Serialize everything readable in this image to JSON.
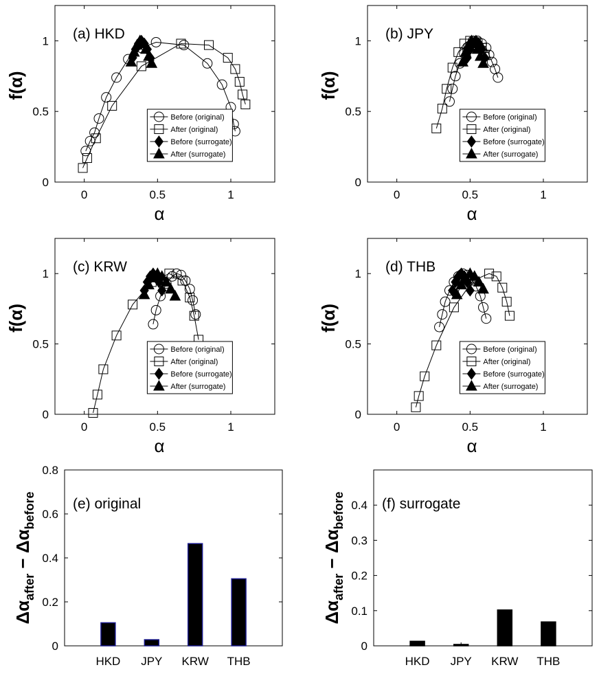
{
  "colors": {
    "axis": "#000000",
    "bar_fill": "#000000",
    "bar_edge_original": "#1a1a8c",
    "background": "#ffffff"
  },
  "chart_data": [
    {
      "id": "a",
      "type": "line",
      "annotation": "(a) HKD",
      "xlabel": "α",
      "ylabel": "f(α)",
      "xlim": [
        -0.2,
        1.3
      ],
      "ylim": [
        0,
        1.25
      ],
      "xticks": [
        0,
        0.5,
        1
      ],
      "xtick_labels": [
        "0",
        "0.5",
        "1"
      ],
      "yticks": [
        0,
        0.5,
        1
      ],
      "ytick_labels": [
        "0",
        "0.5",
        "1"
      ],
      "legend": [
        "Before (original)",
        "After (original)",
        "Before (surrogate)",
        "After (surrogate)"
      ],
      "series": [
        {
          "name": "Before (original)",
          "marker": "circle",
          "line": true,
          "x": [
            0.01,
            0.04,
            0.07,
            0.1,
            0.15,
            0.22,
            0.3,
            0.39,
            0.49,
            0.68,
            0.84,
            0.94,
            1.0,
            1.02,
            1.03
          ],
          "y": [
            0.22,
            0.29,
            0.35,
            0.45,
            0.6,
            0.74,
            0.87,
            0.95,
            0.99,
            0.97,
            0.84,
            0.69,
            0.53,
            0.41,
            0.36
          ]
        },
        {
          "name": "After (original)",
          "marker": "square",
          "line": true,
          "x": [
            -0.01,
            0.02,
            0.08,
            0.19,
            0.39,
            0.66,
            0.85,
            0.98,
            1.03,
            1.06,
            1.08,
            1.1
          ],
          "y": [
            0.1,
            0.17,
            0.31,
            0.54,
            0.82,
            0.98,
            0.97,
            0.88,
            0.8,
            0.71,
            0.62,
            0.55
          ]
        },
        {
          "name": "Before (surrogate)",
          "marker": "diamond",
          "line": true,
          "x": [
            0.33,
            0.35,
            0.37,
            0.39,
            0.41,
            0.43,
            0.45
          ],
          "y": [
            0.88,
            0.94,
            0.98,
            1.0,
            0.98,
            0.94,
            0.88
          ]
        },
        {
          "name": "After (surrogate)",
          "marker": "triangle",
          "line": true,
          "x": [
            0.32,
            0.34,
            0.36,
            0.38,
            0.4,
            0.42,
            0.44,
            0.46
          ],
          "y": [
            0.85,
            0.92,
            0.97,
            1.0,
            0.98,
            0.94,
            0.89,
            0.84
          ]
        }
      ]
    },
    {
      "id": "b",
      "type": "line",
      "annotation": "(b) JPY",
      "xlabel": "α",
      "ylabel": "f(α)",
      "xlim": [
        -0.2,
        1.3
      ],
      "ylim": [
        0,
        1.25
      ],
      "xticks": [
        0,
        0.5,
        1
      ],
      "xtick_labels": [
        "0",
        "0.5",
        "1"
      ],
      "yticks": [
        0,
        0.5,
        1
      ],
      "ytick_labels": [
        "0",
        "0.5",
        "1"
      ],
      "legend": [
        "Before (original)",
        "After (original)",
        "Before (surrogate)",
        "After (surrogate)"
      ],
      "series": [
        {
          "name": "Before (original)",
          "marker": "circle",
          "line": true,
          "x": [
            0.36,
            0.38,
            0.4,
            0.43,
            0.46,
            0.49,
            0.52,
            0.55,
            0.58,
            0.61,
            0.63,
            0.65,
            0.67,
            0.69
          ],
          "y": [
            0.57,
            0.66,
            0.75,
            0.84,
            0.91,
            0.96,
            1.0,
            1.0,
            0.98,
            0.95,
            0.9,
            0.85,
            0.8,
            0.74
          ]
        },
        {
          "name": "After (original)",
          "marker": "square",
          "line": true,
          "x": [
            0.27,
            0.31,
            0.34,
            0.38,
            0.42,
            0.46,
            0.5,
            0.54,
            0.58,
            0.6
          ],
          "y": [
            0.38,
            0.52,
            0.66,
            0.81,
            0.92,
            0.98,
            1.0,
            0.99,
            0.95,
            0.9
          ]
        },
        {
          "name": "Before (surrogate)",
          "marker": "diamond",
          "line": true,
          "x": [
            0.48,
            0.5,
            0.52,
            0.54,
            0.56,
            0.58,
            0.6
          ],
          "y": [
            0.88,
            0.94,
            0.98,
            1.0,
            0.98,
            0.94,
            0.88
          ]
        },
        {
          "name": "After (surrogate)",
          "marker": "triangle",
          "line": true,
          "x": [
            0.45,
            0.47,
            0.49,
            0.51,
            0.53,
            0.55,
            0.57,
            0.59
          ],
          "y": [
            0.85,
            0.92,
            0.97,
            1.0,
            0.98,
            0.94,
            0.89,
            0.84
          ]
        }
      ]
    },
    {
      "id": "c",
      "type": "line",
      "annotation": "(c) KRW",
      "xlabel": "α",
      "ylabel": "f(α)",
      "xlim": [
        -0.2,
        1.3
      ],
      "ylim": [
        0,
        1.25
      ],
      "xticks": [
        0,
        0.5,
        1
      ],
      "xtick_labels": [
        "0",
        "0.5",
        "1"
      ],
      "yticks": [
        0,
        0.5,
        1
      ],
      "ytick_labels": [
        "0",
        "0.5",
        "1"
      ],
      "legend": [
        "Before (original)",
        "After (original)",
        "Before (surrogate)",
        "After (surrogate)"
      ],
      "series": [
        {
          "name": "Before (original)",
          "marker": "circle",
          "line": true,
          "x": [
            0.47,
            0.49,
            0.52,
            0.56,
            0.6,
            0.63,
            0.66,
            0.69,
            0.72,
            0.74,
            0.76
          ],
          "y": [
            0.64,
            0.74,
            0.84,
            0.93,
            0.98,
            1.0,
            0.99,
            0.95,
            0.89,
            0.81,
            0.71
          ]
        },
        {
          "name": "After (original)",
          "marker": "square",
          "line": true,
          "x": [
            0.06,
            0.09,
            0.13,
            0.22,
            0.33,
            0.46,
            0.58,
            0.67,
            0.72,
            0.75,
            0.78
          ],
          "y": [
            0.01,
            0.14,
            0.32,
            0.56,
            0.78,
            0.94,
            1.0,
            0.95,
            0.83,
            0.7,
            0.53
          ]
        },
        {
          "name": "Before (surrogate)",
          "marker": "diamond",
          "line": true,
          "x": [
            0.41,
            0.43,
            0.45,
            0.47,
            0.49,
            0.51,
            0.53
          ],
          "y": [
            0.88,
            0.94,
            0.98,
            1.0,
            0.98,
            0.94,
            0.88
          ]
        },
        {
          "name": "After (surrogate)",
          "marker": "triangle",
          "line": true,
          "x": [
            0.41,
            0.44,
            0.47,
            0.5,
            0.53,
            0.56,
            0.59,
            0.62
          ],
          "y": [
            0.85,
            0.92,
            0.97,
            1.0,
            0.98,
            0.94,
            0.89,
            0.84
          ]
        }
      ]
    },
    {
      "id": "d",
      "type": "line",
      "annotation": "(d) THB",
      "xlabel": "α",
      "ylabel": "f(α)",
      "xlim": [
        -0.2,
        1.3
      ],
      "ylim": [
        0,
        1.25
      ],
      "xticks": [
        0,
        0.5,
        1
      ],
      "xtick_labels": [
        "0",
        "0.5",
        "1"
      ],
      "yticks": [
        0,
        0.5,
        1
      ],
      "ytick_labels": [
        "0",
        "0.5",
        "1"
      ],
      "legend": [
        "Before (original)",
        "After (original)",
        "Before (surrogate)",
        "After (surrogate)"
      ],
      "series": [
        {
          "name": "Before (original)",
          "marker": "circle",
          "line": true,
          "x": [
            0.29,
            0.31,
            0.33,
            0.36,
            0.39,
            0.42,
            0.45,
            0.48,
            0.51,
            0.54,
            0.57,
            0.59,
            0.61
          ],
          "y": [
            0.62,
            0.71,
            0.8,
            0.88,
            0.94,
            0.98,
            1.0,
            0.99,
            0.96,
            0.91,
            0.84,
            0.76,
            0.68
          ]
        },
        {
          "name": "After (original)",
          "marker": "square",
          "line": true,
          "x": [
            0.13,
            0.15,
            0.19,
            0.27,
            0.39,
            0.52,
            0.63,
            0.68,
            0.72,
            0.75,
            0.77
          ],
          "y": [
            0.05,
            0.13,
            0.27,
            0.49,
            0.76,
            0.95,
            1.0,
            0.98,
            0.9,
            0.8,
            0.7
          ]
        },
        {
          "name": "Before (surrogate)",
          "marker": "diamond",
          "line": true,
          "x": [
            0.38,
            0.4,
            0.42,
            0.44,
            0.46,
            0.48,
            0.5
          ],
          "y": [
            0.88,
            0.94,
            0.98,
            1.0,
            0.98,
            0.94,
            0.88
          ]
        },
        {
          "name": "After (surrogate)",
          "marker": "triangle",
          "line": true,
          "x": [
            0.41,
            0.44,
            0.47,
            0.5,
            0.53,
            0.56,
            0.59
          ],
          "y": [
            0.85,
            0.92,
            0.97,
            1.0,
            0.98,
            0.94,
            0.89
          ]
        }
      ]
    },
    {
      "id": "e",
      "type": "bar",
      "annotation": "(e) original",
      "ylabel": "Δα",
      "ylabel_sub1": "after",
      "ylabel_mid": " − Δα",
      "ylabel_sub2": "before",
      "categories": [
        "HKD",
        "JPY",
        "KRW",
        "THB"
      ],
      "values": [
        0.105,
        0.028,
        0.465,
        0.305
      ],
      "ylim": [
        0,
        0.8
      ],
      "yticks": [
        0,
        0.2,
        0.4,
        0.6,
        0.8
      ],
      "ytick_labels": [
        "0",
        "0.2",
        "0.4",
        "0.6",
        "0.8"
      ]
    },
    {
      "id": "f",
      "type": "bar",
      "annotation": "(f) surrogate",
      "ylabel": "Δα",
      "ylabel_sub1": "after",
      "ylabel_mid": " − Δα",
      "ylabel_sub2": "before",
      "categories": [
        "HKD",
        "JPY",
        "KRW",
        "THB"
      ],
      "values": [
        0.013,
        0.004,
        0.102,
        0.068
      ],
      "ylim": [
        0,
        0.5
      ],
      "yticks": [
        0,
        0.1,
        0.2,
        0.3,
        0.4
      ],
      "ytick_labels": [
        "0",
        "0.1",
        "0.2",
        "0.3",
        "0.4"
      ]
    }
  ]
}
